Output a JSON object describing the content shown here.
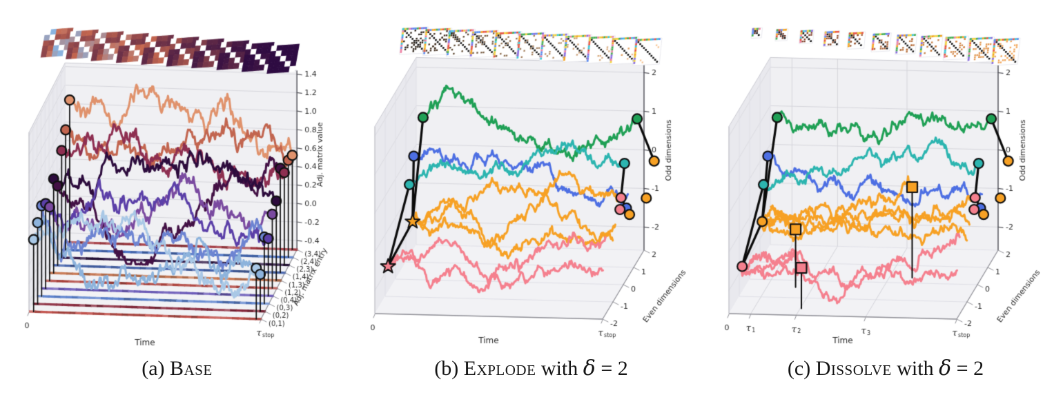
{
  "captions": [
    {
      "prefix": "(a)",
      "name": "Base",
      "mid": "",
      "var": "",
      "rest": ""
    },
    {
      "prefix": "(b)",
      "name": "Explode",
      "mid": "with",
      "var": "δ",
      "rest": "= 2"
    },
    {
      "prefix": "(c)",
      "name": "Dissolve",
      "mid": "with",
      "var": "δ",
      "rest": "= 2"
    }
  ],
  "chart_data": [
    {
      "panel": "a",
      "type": "line",
      "subtype": "3d-random-walks",
      "caption": "(a) Base",
      "xlabel": "Time",
      "x_ticks": [
        {
          "t": 0,
          "label": "0"
        },
        {
          "t": 1,
          "main": "τ",
          "sub": "stop"
        }
      ],
      "zlabel": "Adj. matrix value",
      "z_ticks": [
        1.4,
        1.2,
        1.0,
        0.8,
        0.6,
        0.4,
        0.2,
        0.0,
        -0.2,
        -0.4
      ],
      "z_range": [
        -0.5,
        1.44
      ],
      "dlabel": "Adj. matrix entry",
      "d_ticks": [
        "(0,1)",
        "(0,2)",
        "(0,3)",
        "(0,4)",
        "(1,2)",
        "(1,3)",
        "(1,4)",
        "(2,3)",
        "(2,4)",
        "(3,4)"
      ],
      "grid": true,
      "legend": "none",
      "marker_ends": true,
      "thumbnails": {
        "style": "heatmap-communities",
        "count": 10
      },
      "floor_stripe_colors": [
        "#c0504a",
        "#8a2a3e",
        "#5a80cc",
        "#6b5ab8",
        "#b0453f",
        "#c97a55",
        "#4a68b0",
        "#2a1240",
        "#4a72c4",
        "#a63d45"
      ],
      "walks": [
        {
          "entry": "(0,1)",
          "color": "#a9c8e6",
          "d": 0,
          "t0": 0.02,
          "t1": 0.98,
          "z0": 0.28,
          "z1": 0.05,
          "vol": 0.3,
          "seed": 11
        },
        {
          "entry": "(0,2)",
          "color": "#8db3dc",
          "d": 1,
          "t0": 0.02,
          "t1": 0.98,
          "z0": 0.38,
          "z1": -0.1,
          "vol": 0.3,
          "seed": 12
        },
        {
          "entry": "(0,3)",
          "color": "#6d84d2",
          "d": 2,
          "t0": 0.02,
          "t1": 0.98,
          "z0": 0.48,
          "z1": 0.22,
          "vol": 0.3,
          "seed": 13
        },
        {
          "entry": "(0,4)",
          "color": "#5b3fa8",
          "d": 3,
          "t0": 0.02,
          "t1": 0.98,
          "z0": 0.42,
          "z1": 0.12,
          "vol": 0.3,
          "seed": 14
        },
        {
          "entry": "(1,2)",
          "color": "#7a4aa0",
          "d": 4,
          "t0": 0.02,
          "t1": 0.98,
          "z0": 0.3,
          "z1": 0.3,
          "vol": 0.3,
          "seed": 15
        },
        {
          "entry": "(1,3)",
          "color": "#2d0c3d",
          "d": 5,
          "t0": 0.02,
          "t1": 0.98,
          "z0": 0.52,
          "z1": 0.36,
          "vol": 0.3,
          "seed": 16
        },
        {
          "entry": "(1,4)",
          "color": "#431145",
          "d": 6,
          "t0": 0.02,
          "t1": 0.98,
          "z0": 0.36,
          "z1": 0.63,
          "vol": 0.3,
          "seed": 17
        },
        {
          "entry": "(2,3)",
          "color": "#8e2f51",
          "d": 7,
          "t0": 0.02,
          "t1": 0.98,
          "z0": 0.66,
          "z1": 0.5,
          "vol": 0.3,
          "seed": 18
        },
        {
          "entry": "(2,4)",
          "color": "#c2654f",
          "d": 8,
          "t0": 0.02,
          "t1": 0.98,
          "z0": 0.8,
          "z1": 0.55,
          "vol": 0.3,
          "seed": 19
        },
        {
          "entry": "(3,4)",
          "color": "#e0926c",
          "d": 9,
          "t0": 0.02,
          "t1": 0.98,
          "z0": 1.04,
          "z1": 0.52,
          "vol": 0.3,
          "seed": 20
        }
      ],
      "markers": [],
      "edges": []
    },
    {
      "panel": "b",
      "type": "line",
      "subtype": "3d-random-walks",
      "caption": "(b) Explode with δ = 2",
      "xlabel": "Time",
      "x_ticks": [
        {
          "t": 0,
          "label": "0"
        },
        {
          "t": 1,
          "main": "τ",
          "sub": "stop"
        }
      ],
      "zlabel": "Odd dimensions",
      "z_ticks": [
        2,
        1,
        0,
        -1,
        -2
      ],
      "z_range": [
        -2.6,
        2.25
      ],
      "dlabel": "Even dimensions",
      "d_ticks": [
        2,
        1,
        0,
        -1,
        -2
      ],
      "grid": true,
      "legend": "none",
      "marker_ends": false,
      "thumbnails": {
        "style": "sparse-fade",
        "count": 11
      },
      "walks": [
        {
          "color": "#1fa055",
          "d": 2.0,
          "t0": 0.03,
          "t1": 0.97,
          "z0": 0.7,
          "z1": 0.8,
          "vol": 0.5,
          "seed": 31
        },
        {
          "color": "#4d6fe3",
          "d": 1.1,
          "t0": 0.03,
          "t1": 0.97,
          "z0": 0.1,
          "z1": -0.75,
          "vol": 0.45,
          "seed": 32
        },
        {
          "color": "#2cb5b0",
          "d": 0.9,
          "t0": 0.02,
          "t1": 0.96,
          "z0": -0.55,
          "z1": 0.09,
          "vol": 0.4,
          "seed": 33
        },
        {
          "color": "#f7a124",
          "d": -0.3,
          "t0": 0.1,
          "t1": 0.99,
          "z0": -0.85,
          "z1": -0.28,
          "vol": 0.45,
          "seed": 34
        },
        {
          "color": "#f7a124",
          "d": -0.55,
          "t0": 0.1,
          "t1": 0.99,
          "z0": -0.85,
          "z1": -0.8,
          "vol": 0.4,
          "seed": 35
        },
        {
          "color": "#f7a124",
          "d": -0.8,
          "t0": 0.1,
          "t1": 0.99,
          "z0": -0.85,
          "z1": -1.1,
          "vol": 0.4,
          "seed": 36
        },
        {
          "color": "#f5808e",
          "d": -1.5,
          "t0": 0.04,
          "t1": 0.99,
          "z0": -1.55,
          "z1": -0.7,
          "vol": 0.45,
          "seed": 37
        },
        {
          "color": "#f5808e",
          "d": -1.75,
          "t0": 0.04,
          "t1": 0.99,
          "z0": -1.55,
          "z1": -1.45,
          "vol": 0.4,
          "seed": 38
        }
      ],
      "markers": [
        {
          "id": "green-start",
          "shape": "circle",
          "color": "#1fa055",
          "t": 0.03,
          "d": 2.0,
          "z": 0.7,
          "stem": false
        },
        {
          "id": "blue-start",
          "shape": "circle",
          "color": "#4d6fe3",
          "t": 0.03,
          "d": 1.1,
          "z": 0.1,
          "stem": false
        },
        {
          "id": "teal-start",
          "shape": "circle",
          "color": "#2cb5b0",
          "t": 0.02,
          "d": 0.9,
          "z": -0.55,
          "stem": false
        },
        {
          "id": "orange-star",
          "shape": "star",
          "color": "#f7a124",
          "t": 0.1,
          "d": -0.55,
          "z": -0.85,
          "stem": false
        },
        {
          "id": "pink-star",
          "shape": "star",
          "color": "#f5808e",
          "t": 0.04,
          "d": -1.6,
          "z": -1.55,
          "stem": false
        },
        {
          "id": "green-end",
          "shape": "circle",
          "color": "#1fa055",
          "t": 0.97,
          "d": 2.0,
          "z": 0.8,
          "stem": false
        },
        {
          "id": "orange-end-1",
          "shape": "circle",
          "color": "#f7a124",
          "t": 1.04,
          "d": 2.1,
          "z": -0.33,
          "stem": false
        },
        {
          "id": "teal-end",
          "shape": "circle",
          "color": "#2cb5b0",
          "t": 0.96,
          "d": 1.0,
          "z": 0.09,
          "stem": false
        },
        {
          "id": "pink-end-1",
          "shape": "circle",
          "color": "#f5808e",
          "t": 0.99,
          "d": 0.0,
          "z": -0.35,
          "stem": false
        },
        {
          "id": "blue-end",
          "shape": "circle",
          "color": "#4d6fe3",
          "t": 1.0,
          "d": 0.3,
          "z": -0.75,
          "stem": false
        },
        {
          "id": "pink-end-2",
          "shape": "circle",
          "color": "#f5808e",
          "t": 0.99,
          "d": -0.1,
          "z": -0.61,
          "stem": false
        },
        {
          "id": "orange-end-2",
          "shape": "circle",
          "color": "#f7a124",
          "t": 1.06,
          "d": 0.9,
          "z": -0.75,
          "stem": false
        },
        {
          "id": "orange-end-3",
          "shape": "circle",
          "color": "#f7a124",
          "t": 1.0,
          "d": 0.6,
          "z": -1.05,
          "stem": false
        }
      ],
      "edges": [
        [
          "green-start",
          "orange-star"
        ],
        [
          "blue-start",
          "orange-star"
        ],
        [
          "teal-start",
          "pink-star"
        ],
        [
          "pink-star",
          "orange-star"
        ],
        [
          "green-end",
          "orange-end-1"
        ],
        [
          "teal-end",
          "pink-end-1"
        ],
        [
          "pink-end-1",
          "blue-end"
        ],
        [
          "blue-end",
          "orange-end-3"
        ]
      ]
    },
    {
      "panel": "c",
      "type": "line",
      "subtype": "3d-random-walks",
      "caption": "(c) Dissolve with δ = 2",
      "xlabel": "Time",
      "x_ticks": [
        {
          "t": 0,
          "label": "0"
        },
        {
          "t": 0.095,
          "main": "τ",
          "sub": "1"
        },
        {
          "t": 0.295,
          "main": "τ",
          "sub": "2"
        },
        {
          "t": 0.6,
          "main": "τ",
          "sub": "3"
        },
        {
          "t": 1,
          "main": "τ",
          "sub": "stop"
        }
      ],
      "tau_gridlines": [
        0.095,
        0.295,
        0.6
      ],
      "zlabel": "Odd dimensions",
      "z_ticks": [
        2,
        1,
        0,
        -1,
        -2
      ],
      "z_range": [
        -2.6,
        2.25
      ],
      "dlabel": "Even dimensions",
      "d_ticks": [
        2,
        1,
        0,
        -1,
        -2
      ],
      "grid": true,
      "legend": "none",
      "marker_ends": false,
      "thumbnails": {
        "style": "sparse-grow",
        "count": 11
      },
      "walks": [
        {
          "color": "#1fa055",
          "d": 2.0,
          "t0": 0.03,
          "t1": 0.97,
          "z0": 0.7,
          "z1": 0.8,
          "vol": 0.5,
          "seed": 41
        },
        {
          "color": "#4d6fe3",
          "d": 1.1,
          "t0": 0.03,
          "t1": 0.97,
          "z0": 0.1,
          "z1": -0.75,
          "vol": 0.45,
          "seed": 42
        },
        {
          "color": "#2cb5b0",
          "d": 0.9,
          "t0": 0.02,
          "t1": 0.96,
          "z0": -0.55,
          "z1": 0.09,
          "vol": 0.4,
          "seed": 43
        },
        {
          "color": "#f7a124",
          "d": -0.4,
          "t0": 0.08,
          "t1": 0.22,
          "z0": -0.85,
          "z1": -1.1,
          "vol": 0.22,
          "seed": 44
        },
        {
          "color": "#f7a124",
          "d": -0.3,
          "t0": 0.08,
          "t1": 0.99,
          "z0": -0.85,
          "z1": -0.28,
          "vol": 0.45,
          "seed": 45
        },
        {
          "color": "#f7a124",
          "d": -0.55,
          "t0": 0.08,
          "t1": 0.99,
          "z0": -0.85,
          "z1": -0.8,
          "vol": 0.4,
          "seed": 46
        },
        {
          "color": "#f7a124",
          "d": -0.8,
          "t0": 0.08,
          "t1": 0.99,
          "z0": -0.85,
          "z1": -1.1,
          "vol": 0.4,
          "seed": 47
        },
        {
          "color": "#f7a124",
          "d": 0.3,
          "t0": 0.08,
          "t1": 0.7,
          "z0": -0.85,
          "z1": -0.25,
          "vol": 0.4,
          "seed": 48
        },
        {
          "color": "#f5808e",
          "d": -1.6,
          "t0": 0.04,
          "t1": 0.3,
          "z0": -1.55,
          "z1": -1.55,
          "vol": 0.28,
          "seed": 49
        },
        {
          "color": "#f5808e",
          "d": -1.5,
          "t0": 0.04,
          "t1": 0.99,
          "z0": -1.55,
          "z1": -0.7,
          "vol": 0.45,
          "seed": 50
        },
        {
          "color": "#f5808e",
          "d": -1.75,
          "t0": 0.04,
          "t1": 0.99,
          "z0": -1.55,
          "z1": -1.45,
          "vol": 0.4,
          "seed": 51
        }
      ],
      "markers": [
        {
          "id": "green-start",
          "shape": "circle",
          "color": "#1fa055",
          "t": 0.03,
          "d": 2.0,
          "z": 0.7,
          "stem": false
        },
        {
          "id": "blue-start",
          "shape": "circle",
          "color": "#4d6fe3",
          "t": 0.03,
          "d": 1.1,
          "z": 0.1,
          "stem": false
        },
        {
          "id": "teal-start",
          "shape": "circle",
          "color": "#2cb5b0",
          "t": 0.02,
          "d": 0.9,
          "z": -0.55,
          "stem": false
        },
        {
          "id": "orange-start",
          "shape": "circle",
          "color": "#f7a124",
          "t": 0.08,
          "d": -0.55,
          "z": -0.85,
          "stem": false
        },
        {
          "id": "pink-start",
          "shape": "circle",
          "color": "#f5808e",
          "t": 0.04,
          "d": -1.6,
          "z": -1.55,
          "stem": false
        },
        {
          "id": "orange-square-1",
          "shape": "square",
          "color": "#f7a124",
          "t": 0.22,
          "d": -0.4,
          "z": -1.1,
          "stem": true
        },
        {
          "id": "pink-square",
          "shape": "square",
          "color": "#f5808e",
          "t": 0.3,
          "d": -1.6,
          "z": -1.55,
          "stem": true
        },
        {
          "id": "orange-square-2",
          "shape": "square",
          "color": "#f7a124",
          "t": 0.7,
          "d": 0.3,
          "z": -0.25,
          "stem": true
        },
        {
          "id": "green-end",
          "shape": "circle",
          "color": "#1fa055",
          "t": 0.97,
          "d": 2.0,
          "z": 0.8,
          "stem": false
        },
        {
          "id": "orange-end-1",
          "shape": "circle",
          "color": "#f7a124",
          "t": 1.04,
          "d": 2.1,
          "z": -0.33,
          "stem": false
        },
        {
          "id": "teal-end",
          "shape": "circle",
          "color": "#2cb5b0",
          "t": 0.96,
          "d": 1.0,
          "z": 0.09,
          "stem": false
        },
        {
          "id": "pink-end-1",
          "shape": "circle",
          "color": "#f5808e",
          "t": 0.99,
          "d": 0.0,
          "z": -0.35,
          "stem": false
        },
        {
          "id": "blue-end",
          "shape": "circle",
          "color": "#4d6fe3",
          "t": 1.0,
          "d": 0.3,
          "z": -0.75,
          "stem": false
        },
        {
          "id": "pink-end-2",
          "shape": "circle",
          "color": "#f5808e",
          "t": 0.99,
          "d": -0.1,
          "z": -0.61,
          "stem": false
        },
        {
          "id": "orange-end-2",
          "shape": "circle",
          "color": "#f7a124",
          "t": 1.06,
          "d": 0.9,
          "z": -0.75,
          "stem": false
        },
        {
          "id": "orange-end-3",
          "shape": "circle",
          "color": "#f7a124",
          "t": 1.0,
          "d": 0.6,
          "z": -1.05,
          "stem": false
        }
      ],
      "edges": [
        [
          "green-start",
          "orange-start"
        ],
        [
          "blue-start",
          "orange-start"
        ],
        [
          "teal-start",
          "pink-start"
        ],
        [
          "pink-start",
          "orange-start"
        ],
        [
          "green-end",
          "orange-end-1"
        ],
        [
          "teal-end",
          "pink-end-1"
        ],
        [
          "pink-end-1",
          "blue-end"
        ],
        [
          "blue-end",
          "orange-end-3"
        ]
      ]
    }
  ]
}
